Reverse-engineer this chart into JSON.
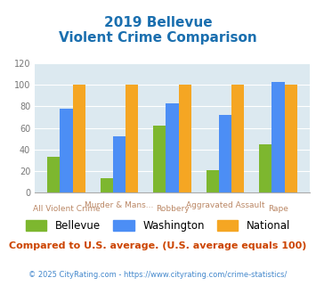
{
  "title_line1": "2019 Bellevue",
  "title_line2": "Violent Crime Comparison",
  "title_color": "#1a6faf",
  "categories": [
    "All Violent Crime",
    "Murder & Mans...",
    "Robbery",
    "Aggravated Assault",
    "Rape"
  ],
  "top_labels": [
    "",
    "Murder & Mans...",
    "",
    "Aggravated Assault",
    ""
  ],
  "bottom_labels": [
    "All Violent Crime",
    "",
    "Robbery",
    "",
    "Rape"
  ],
  "bellevue": [
    33,
    13,
    62,
    21,
    45
  ],
  "washington": [
    78,
    52,
    83,
    72,
    103
  ],
  "national": [
    100,
    100,
    100,
    100,
    100
  ],
  "bellevue_color": "#7db72f",
  "washington_color": "#4c8ef5",
  "national_color": "#f5a623",
  "ylim": [
    0,
    120
  ],
  "yticks": [
    0,
    20,
    40,
    60,
    80,
    100,
    120
  ],
  "plot_bg_color": "#dce9f0",
  "grid_color": "#ffffff",
  "subtitle": "Compared to U.S. average. (U.S. average equals 100)",
  "subtitle_color": "#cc4400",
  "footer": "© 2025 CityRating.com - https://www.cityrating.com/crime-statistics/",
  "footer_color": "#4488cc",
  "legend_labels": [
    "Bellevue",
    "Washington",
    "National"
  ]
}
